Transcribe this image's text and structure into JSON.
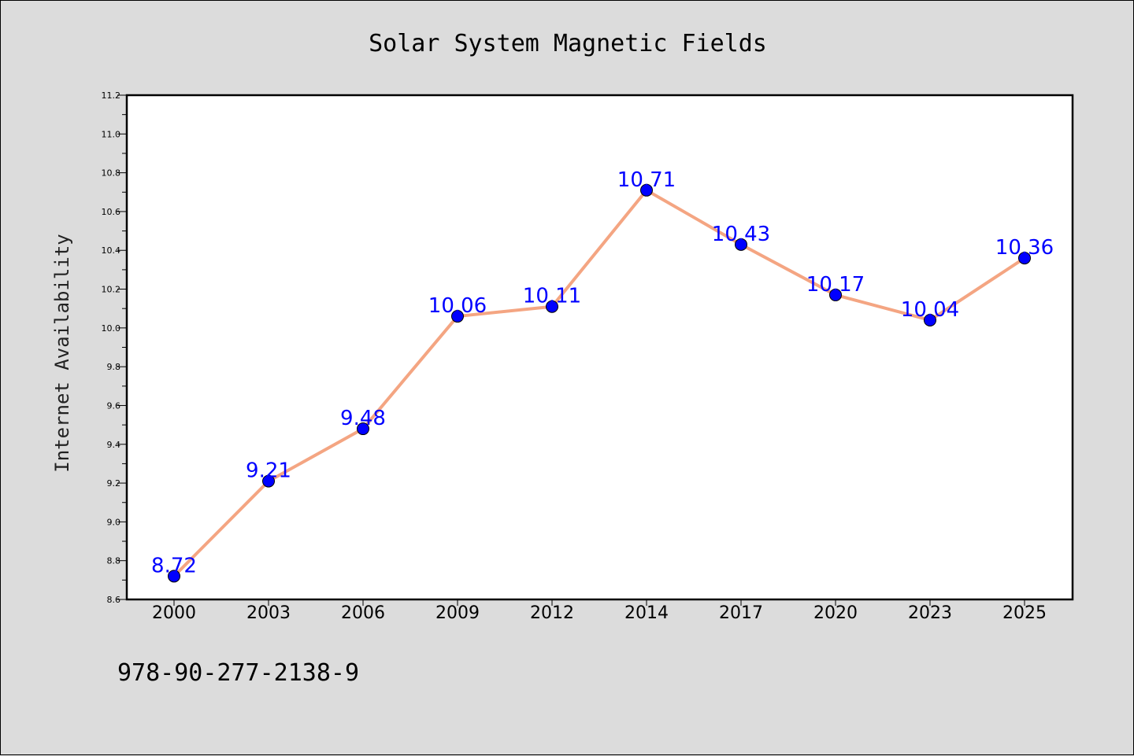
{
  "chart_data": {
    "type": "line",
    "title": "Solar System Magnetic Fields",
    "xlabel": "",
    "ylabel": "Internet Availability",
    "categories": [
      "2000",
      "2003",
      "2006",
      "2009",
      "2012",
      "2014",
      "2017",
      "2020",
      "2023",
      "2025"
    ],
    "series": [
      {
        "values": [
          8.72,
          9.21,
          9.48,
          10.06,
          10.11,
          10.71,
          10.43,
          10.17,
          10.04,
          10.36
        ],
        "labels": [
          "8.72",
          "9.21",
          "9.48",
          "10.06",
          "10.11",
          "10.71",
          "10.43",
          "10.17",
          "10.04",
          "10.36"
        ],
        "line_color": "#f4a582",
        "marker_color": "#0000ff",
        "label_color": "#0000ff"
      }
    ],
    "ylim": [
      8.6,
      11.2
    ],
    "yticks": [
      "8.6",
      "8.8",
      "9.0",
      "9.2",
      "9.4",
      "9.6",
      "9.8",
      "10.0",
      "10.2",
      "10.4",
      "10.6",
      "10.8",
      "11.0",
      "11.2"
    ],
    "grid": false,
    "legend": "none"
  },
  "footer": {
    "isbn": "978-90-277-2138-9"
  },
  "colors": {
    "page_background": "#dcdcdc",
    "plot_background": "#ffffff",
    "line": "#f4a582",
    "marker": "#0000ff",
    "data_label": "#0000ff"
  }
}
